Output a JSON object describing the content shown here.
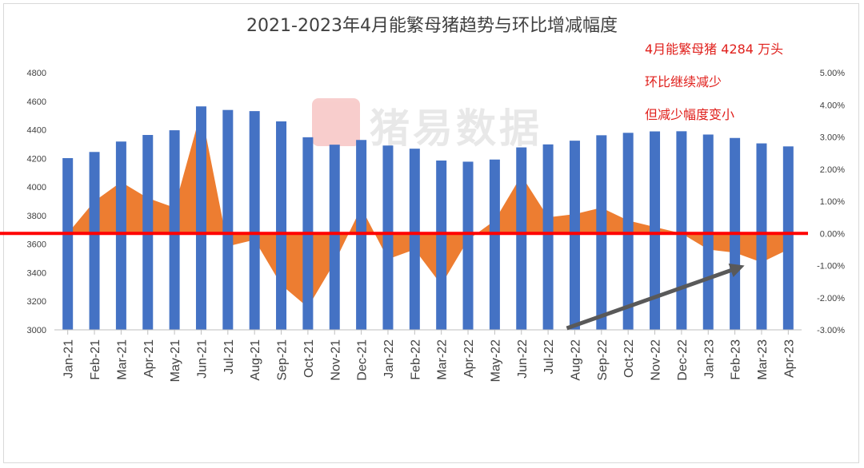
{
  "chart_data": {
    "type": "bar",
    "title": "2021-2023年4月能繁母猪趋势与环比增减幅度",
    "categories": [
      "Jan-21",
      "Feb-21",
      "Mar-21",
      "Apr-21",
      "May-21",
      "Jun-21",
      "Jul-21",
      "Aug-21",
      "Sep-21",
      "Oct-21",
      "Nov-21",
      "Dec-21",
      "Jan-22",
      "Feb-22",
      "Mar-22",
      "Apr-22",
      "May-22",
      "Jun-22",
      "Jul-22",
      "Aug-22",
      "Sep-22",
      "Oct-22",
      "Nov-22",
      "Dec-22",
      "Jan-23",
      "Feb-23",
      "Mar-23",
      "Apr-23"
    ],
    "series": [
      {
        "type": "bar",
        "axis": "left",
        "color": "#4472c4",
        "values": [
          4202,
          4245,
          4318,
          4364,
          4397,
          4564,
          4539,
          4531,
          4459,
          4348,
          4296,
          4329,
          4290,
          4268,
          4185,
          4177,
          4192,
          4277,
          4298,
          4324,
          4362,
          4379,
          4389,
          4390,
          4367,
          4343,
          4305,
          4284
        ]
      },
      {
        "type": "area",
        "axis": "right",
        "color": "#ed7d31",
        "values": [
          0.0,
          1.0,
          1.6,
          1.1,
          0.8,
          3.8,
          -0.4,
          -0.2,
          -1.6,
          -2.3,
          -0.9,
          0.8,
          -0.8,
          -0.5,
          -1.6,
          -0.2,
          0.4,
          1.8,
          0.5,
          0.6,
          0.8,
          0.4,
          0.2,
          0.0,
          -0.5,
          -0.6,
          -0.9,
          -0.5
        ]
      }
    ],
    "y_left": {
      "min": 3000,
      "max": 4800,
      "step": 200,
      "ticks": [
        "3000",
        "3200",
        "3400",
        "3600",
        "3800",
        "4000",
        "4200",
        "4400",
        "4600",
        "4800"
      ]
    },
    "y_right": {
      "min": -3,
      "max": 5,
      "step": 1,
      "ticks": [
        "-3.00%",
        "-2.00%",
        "-1.00%",
        "0.00%",
        "1.00%",
        "2.00%",
        "3.00%",
        "4.00%",
        "5.00%"
      ]
    },
    "zero_line_color": "#ff0000",
    "arrow_color": "#595959",
    "grid": false,
    "legend": "none",
    "annotations": [
      "4月能繁母猪 4284 万头",
      "环比继续减少",
      "但减少幅度变小"
    ]
  },
  "watermark": {
    "text": "猪易数据"
  }
}
